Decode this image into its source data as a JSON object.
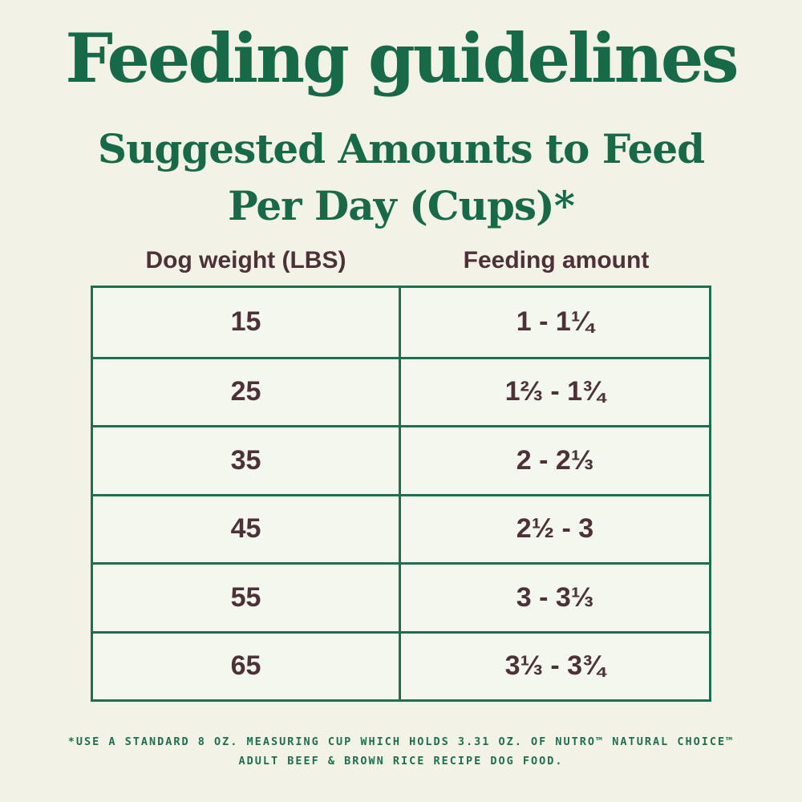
{
  "page": {
    "title": "Feeding guidelines",
    "subtitle_line1": "Suggested Amounts to Feed",
    "subtitle_line2": "Per Day (Cups)*"
  },
  "table": {
    "col1_header": "Dog weight (LBS)",
    "col2_header": "Feeding amount",
    "rows": [
      {
        "weight": "15",
        "amount": "1 - 1¼"
      },
      {
        "weight": "25",
        "amount": "1⅔ - 1¾"
      },
      {
        "weight": "35",
        "amount": "2 - 2⅓"
      },
      {
        "weight": "45",
        "amount": "2½ - 3"
      },
      {
        "weight": "55",
        "amount": "3 - 3⅓"
      },
      {
        "weight": "65",
        "amount": "3⅓ - 3¾"
      }
    ]
  },
  "footnote": {
    "line1": "*USE A STANDARD 8 OZ. MEASURING CUP WHICH HOLDS 3.31 OZ. OF NUTRO™ NATURAL CHOICE™",
    "line2": "ADULT BEEF & BROWN RICE RECIPE DOG FOOD."
  },
  "colors": {
    "green_text": "#166a48",
    "table_border": "#1e6f4f",
    "brown_text": "#4c3237",
    "page_background": "#f3f2e7",
    "cell_background": "#f3f7ee"
  }
}
